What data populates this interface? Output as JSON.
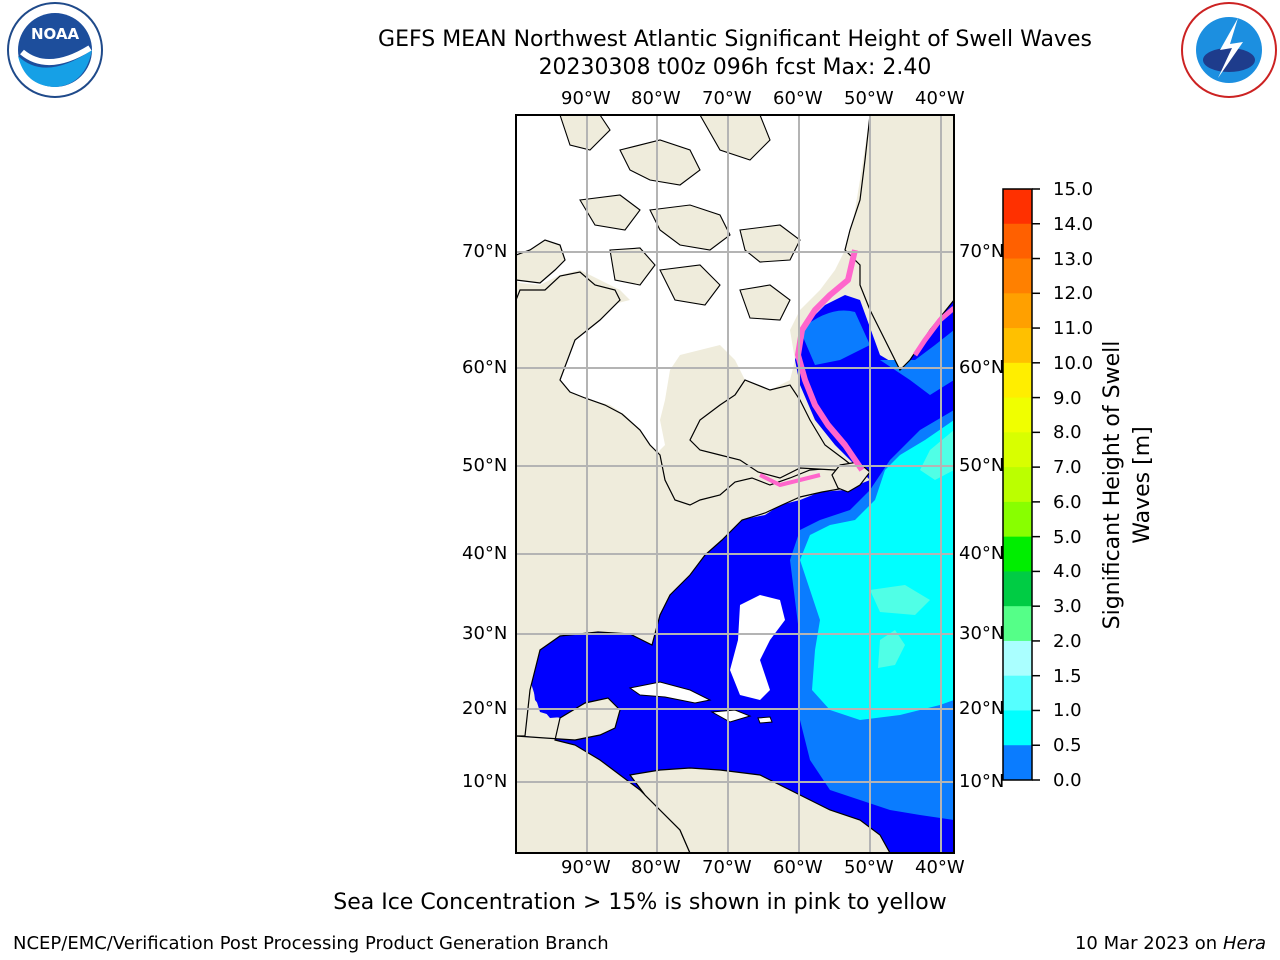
{
  "title": {
    "line1": "GEFS MEAN Northwest Atlantic Significant Height of Swell Waves",
    "line2": "20230308 t00z 096h fcst   Max: 2.40"
  },
  "logos": {
    "left": "noaa-logo",
    "left_text": "NOAA",
    "left_ring_text": "NATIONAL OCEANIC AND ATMOSPHERIC ADMINISTRATION · U.S. DEPARTMENT OF COMMERCE",
    "right": "national-weather-service-logo",
    "right_ring_text": "NATIONAL WEATHER SERVICE"
  },
  "map": {
    "lon_labels": [
      "90°W",
      "80°W",
      "70°W",
      "60°W",
      "50°W",
      "40°W"
    ],
    "lat_labels": [
      "70°N",
      "60°N",
      "50°N",
      "40°N",
      "30°N",
      "20°N",
      "10°N"
    ],
    "colors": {
      "land": "#efecdc",
      "ice_ocean": "#ffffff",
      "grid": "#b4b4b4",
      "swell_low": "#0000ff",
      "swell_mid": "#0a7cff",
      "swell_high": "#00ffff",
      "swell_highest": "#50ffe6",
      "ice": "#ff66cc"
    }
  },
  "colorbar": {
    "title": "Significant Height of Swell Waves [m]",
    "ticks": [
      "15.0",
      "14.0",
      "13.0",
      "12.0",
      "11.0",
      "10.0",
      "9.0",
      "8.0",
      "7.0",
      "6.0",
      "5.0",
      "4.0",
      "3.0",
      "2.0",
      "1.5",
      "1.0",
      "0.5",
      "0.0"
    ],
    "colors": [
      "#ff0000",
      "#ff3000",
      "#ff6000",
      "#ff8000",
      "#ffa000",
      "#ffc000",
      "#ffee00",
      "#f0ff00",
      "#d8ff00",
      "#bbff00",
      "#88ff00",
      "#00ee00",
      "#00cc44",
      "#55ff88",
      "#aaffff",
      "#55ffff",
      "#00ffff",
      "#0a7cff",
      "#0000ff"
    ]
  },
  "caption": "Sea Ice Concentration > 15% is shown in pink to yellow",
  "footer": {
    "credit": "NCEP/EMC/Verification Post Processing Product Generation Branch",
    "date": "10 Mar 2023 on",
    "host": "Hera"
  }
}
